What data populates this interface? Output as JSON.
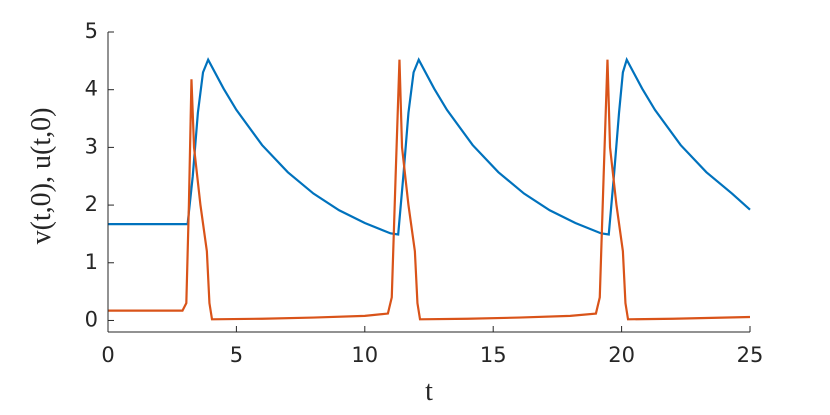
{
  "chart_data": {
    "type": "line",
    "xlabel": "t",
    "ylabel": "v(t,0), u(t,0)",
    "xlim": [
      0,
      25
    ],
    "ylim": [
      -0.2,
      5
    ],
    "xticks": [
      0,
      5,
      10,
      15,
      20,
      25
    ],
    "yticks": [
      0,
      1,
      2,
      3,
      4,
      5
    ],
    "series": [
      {
        "color": "#0072bd",
        "x": [
          0,
          3.1,
          3.3,
          3.5,
          3.7,
          3.9,
          4.5,
          5,
          6,
          7,
          8,
          9,
          10,
          11,
          11.3,
          11.5,
          11.7,
          11.9,
          12.1,
          12.7,
          13.2,
          14.2,
          15.2,
          16.2,
          17.2,
          18.2,
          19.2,
          19.5,
          19.7,
          19.9,
          20.05,
          20.2,
          20.8,
          21.3,
          22.3,
          23.3,
          24.3,
          25
        ],
        "values": [
          1.67,
          1.67,
          2.5,
          3.6,
          4.3,
          4.52,
          4.02,
          3.65,
          3.04,
          2.57,
          2.2,
          1.91,
          1.69,
          1.51,
          1.49,
          2.5,
          3.6,
          4.3,
          4.52,
          4.02,
          3.65,
          3.04,
          2.57,
          2.2,
          1.91,
          1.69,
          1.51,
          1.49,
          2.5,
          3.6,
          4.3,
          4.52,
          4.02,
          3.65,
          3.04,
          2.57,
          2.2,
          1.92
        ]
      },
      {
        "color": "#d95319",
        "x": [
          0,
          2.9,
          3.05,
          3.15,
          3.25,
          3.35,
          3.6,
          3.85,
          3.95,
          4.05,
          6,
          8,
          10,
          10.9,
          11.05,
          11.2,
          11.35,
          11.45,
          11.7,
          11.95,
          12.05,
          12.15,
          14,
          16,
          18,
          19,
          19.15,
          19.3,
          19.45,
          19.55,
          19.8,
          20.05,
          20.15,
          20.25,
          22,
          25
        ],
        "values": [
          0.17,
          0.17,
          0.3,
          2.0,
          4.18,
          3.0,
          2.0,
          1.2,
          0.3,
          0.02,
          0.03,
          0.05,
          0.08,
          0.12,
          0.4,
          2.5,
          4.52,
          3.0,
          2.0,
          1.2,
          0.3,
          0.02,
          0.03,
          0.05,
          0.08,
          0.12,
          0.4,
          2.5,
          4.52,
          3.0,
          2.0,
          1.2,
          0.3,
          0.02,
          0.03,
          0.06
        ]
      }
    ]
  }
}
